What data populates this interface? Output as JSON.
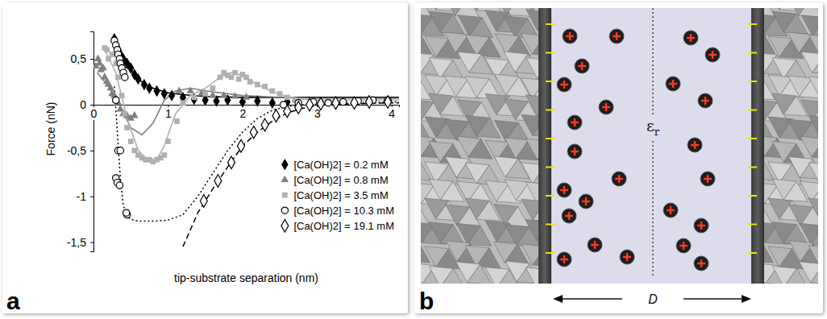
{
  "chart_data": {
    "type": "scatter",
    "panel_label": "a",
    "x_label": "tip-substrate separation (nm)",
    "y_label": "Force (nN)",
    "xlim": [
      0,
      4.1
    ],
    "ylim": [
      -1.6,
      0.8
    ],
    "xticks": [
      0,
      1,
      2,
      3,
      4
    ],
    "yticks": [
      {
        "value": -1.5,
        "label": "-1,5"
      },
      -1,
      {
        "value": -0.5,
        "label": "-0,5"
      },
      0,
      {
        "value": 0.5,
        "label": "0,5"
      }
    ],
    "legend": "lower right",
    "series": [
      {
        "name": "[Ca(OH)2] = 0.2 mM",
        "color": "#000000",
        "marker": "diamond",
        "line_style": "solid",
        "x": [
          0.28,
          0.3,
          0.33,
          0.36,
          0.4,
          0.45,
          0.5,
          0.55,
          0.6,
          0.68,
          0.75,
          0.85,
          0.95,
          1.05,
          1.2,
          1.35,
          1.5,
          1.65,
          1.8,
          2.0,
          2.2,
          2.4,
          2.6
        ],
        "values": [
          0.72,
          0.65,
          0.6,
          0.55,
          0.5,
          0.45,
          0.4,
          0.33,
          0.28,
          0.22,
          0.18,
          0.15,
          0.12,
          0.1,
          0.08,
          0.06,
          0.05,
          0.04,
          0.05,
          0.03,
          0.04,
          0.02,
          0.03
        ],
        "fit_x": [
          0.3,
          0.4,
          0.5,
          0.6,
          0.7,
          0.8,
          1.0,
          1.2,
          1.5,
          2.0,
          2.5,
          3.0,
          3.5,
          4.0,
          4.1
        ],
        "fit_values": [
          0.72,
          0.52,
          0.38,
          0.28,
          0.22,
          0.18,
          0.13,
          0.11,
          0.09,
          0.08,
          0.08,
          0.08,
          0.08,
          0.08,
          0.08
        ]
      },
      {
        "name": "[Ca(OH)2] = 0.8 mM",
        "color": "#7f7f7f",
        "marker": "triangle",
        "line_style": "solid",
        "x": [
          0.03,
          0.06,
          0.08,
          0.1,
          0.13,
          0.15,
          0.18,
          0.2,
          0.23,
          0.25,
          0.28,
          0.3,
          0.33,
          0.36,
          0.4,
          0.45,
          0.5,
          0.55,
          1.15,
          1.3,
          1.45,
          1.6,
          1.75,
          1.9,
          2.05
        ],
        "values": [
          0.42,
          0.5,
          0.45,
          0.38,
          0.4,
          0.3,
          0.25,
          0.22,
          0.18,
          0.12,
          0.1,
          0.05,
          0.02,
          -0.05,
          -0.1,
          -0.12,
          -0.15,
          -0.12,
          0.15,
          0.15,
          0.12,
          0.1,
          0.1,
          0.09,
          0.08
        ],
        "fit_x": [
          0.05,
          0.2,
          0.35,
          0.5,
          0.65,
          0.8,
          0.95,
          1.1,
          1.3,
          1.6,
          2.0,
          2.5,
          3.0,
          3.5,
          4.0,
          4.1
        ],
        "fit_values": [
          0.35,
          0.2,
          0.0,
          -0.25,
          -0.33,
          -0.2,
          0.05,
          0.15,
          0.18,
          0.14,
          0.1,
          0.08,
          0.07,
          0.07,
          0.07,
          0.07
        ]
      },
      {
        "name": "[Ca(OH)2] = 3.5 mM",
        "color": "#b0b0b0",
        "marker": "square",
        "line_style": "solid",
        "x": [
          0.15,
          0.18,
          0.2,
          0.25,
          0.3,
          0.33,
          0.38,
          0.42,
          0.45,
          0.5,
          0.55,
          0.6,
          0.65,
          0.7,
          0.75,
          0.8,
          0.85,
          0.9,
          0.95,
          1.0,
          1.12,
          1.2,
          1.35,
          1.5,
          1.6,
          1.7,
          1.75,
          1.8,
          1.85,
          1.9,
          1.95,
          2.0,
          2.05,
          2.1,
          2.2,
          2.3,
          2.4,
          2.5,
          2.6,
          2.7
        ],
        "values": [
          0.62,
          0.6,
          0.5,
          0.55,
          0.45,
          0.3,
          0.1,
          -0.1,
          -0.25,
          -0.4,
          -0.5,
          -0.55,
          -0.58,
          -0.6,
          -0.6,
          -0.62,
          -0.6,
          -0.58,
          -0.55,
          -0.4,
          -0.18,
          0.02,
          0.08,
          0.12,
          0.18,
          0.3,
          0.35,
          0.32,
          0.3,
          0.35,
          0.28,
          0.33,
          0.3,
          0.25,
          0.22,
          0.2,
          0.15,
          0.12,
          0.08,
          0.05
        ],
        "fit_x": [
          0.15,
          0.3,
          0.45,
          0.6,
          0.75,
          0.85,
          0.95,
          1.1,
          1.3,
          1.5,
          1.7,
          1.85,
          2.0,
          2.2,
          2.4,
          2.6,
          2.8,
          3.0,
          3.5,
          4.0,
          4.1
        ],
        "fit_values": [
          0.6,
          0.35,
          -0.15,
          -0.5,
          -0.62,
          -0.6,
          -0.45,
          -0.1,
          0.1,
          0.18,
          0.3,
          0.35,
          0.32,
          0.22,
          0.14,
          0.09,
          0.06,
          0.05,
          0.05,
          0.05,
          0.05
        ]
      },
      {
        "name": "[Ca(OH)2] = 10.3 mM",
        "color": "#000000",
        "marker": "circle-open",
        "line_style": "dotted",
        "x": [
          0.28,
          0.3,
          0.32,
          0.33,
          0.35,
          0.36,
          0.38,
          0.4,
          0.42,
          0.3,
          0.33,
          0.36,
          0.3,
          0.32,
          0.35,
          0.45,
          0.44,
          2.55,
          2.75,
          2.95,
          3.15,
          3.35,
          3.55,
          3.75,
          3.95
        ],
        "values": [
          0.7,
          0.65,
          0.6,
          0.55,
          0.5,
          0.45,
          0.4,
          0.35,
          0.3,
          0.05,
          -0.5,
          -0.5,
          -0.8,
          -0.85,
          -0.88,
          -1.2,
          -1.18,
          0.0,
          0.02,
          0.03,
          0.02,
          0.03,
          0.04,
          0.05,
          0.05
        ],
        "fit_x": [
          0.28,
          0.32,
          0.36,
          0.4,
          0.45,
          0.5,
          0.6,
          0.8,
          1.0,
          1.2,
          1.4,
          1.6,
          1.8,
          2.0,
          2.2,
          2.4,
          2.6,
          2.8,
          3.0,
          3.5,
          4.0,
          4.1
        ],
        "fit_values": [
          0.2,
          -0.3,
          -0.8,
          -1.1,
          -1.22,
          -1.25,
          -1.27,
          -1.27,
          -1.26,
          -1.2,
          -1.0,
          -0.75,
          -0.5,
          -0.3,
          -0.15,
          -0.06,
          -0.02,
          0.0,
          0.0,
          0.02,
          0.03,
          0.03
        ]
      },
      {
        "name": "[Ca(OH)2] = 19.1 mM",
        "color": "#000000",
        "marker": "diamond-open",
        "line_style": "dashed",
        "x": [
          1.48,
          1.67,
          1.85,
          1.98,
          2.15,
          2.3,
          2.45,
          2.6,
          2.75,
          2.9,
          3.05,
          3.25,
          3.5,
          3.7,
          3.95
        ],
        "values": [
          -1.05,
          -0.83,
          -0.63,
          -0.45,
          -0.3,
          -0.22,
          -0.12,
          -0.07,
          -0.03,
          0.0,
          0.01,
          0.02,
          0.02,
          0.03,
          0.03
        ],
        "fit_x": [
          1.2,
          1.4,
          1.6,
          1.8,
          2.0,
          2.2,
          2.4,
          2.6,
          2.8,
          3.0,
          3.5,
          4.0,
          4.1
        ],
        "fit_values": [
          -1.55,
          -1.18,
          -0.92,
          -0.68,
          -0.45,
          -0.3,
          -0.18,
          -0.09,
          -0.04,
          -0.01,
          0.01,
          0.02,
          0.02
        ]
      }
    ]
  },
  "diagram": {
    "panel_label": "b",
    "permittivity_label": {
      "symbol": "ε",
      "subscript": "r"
    },
    "separation_label": "D"
  }
}
